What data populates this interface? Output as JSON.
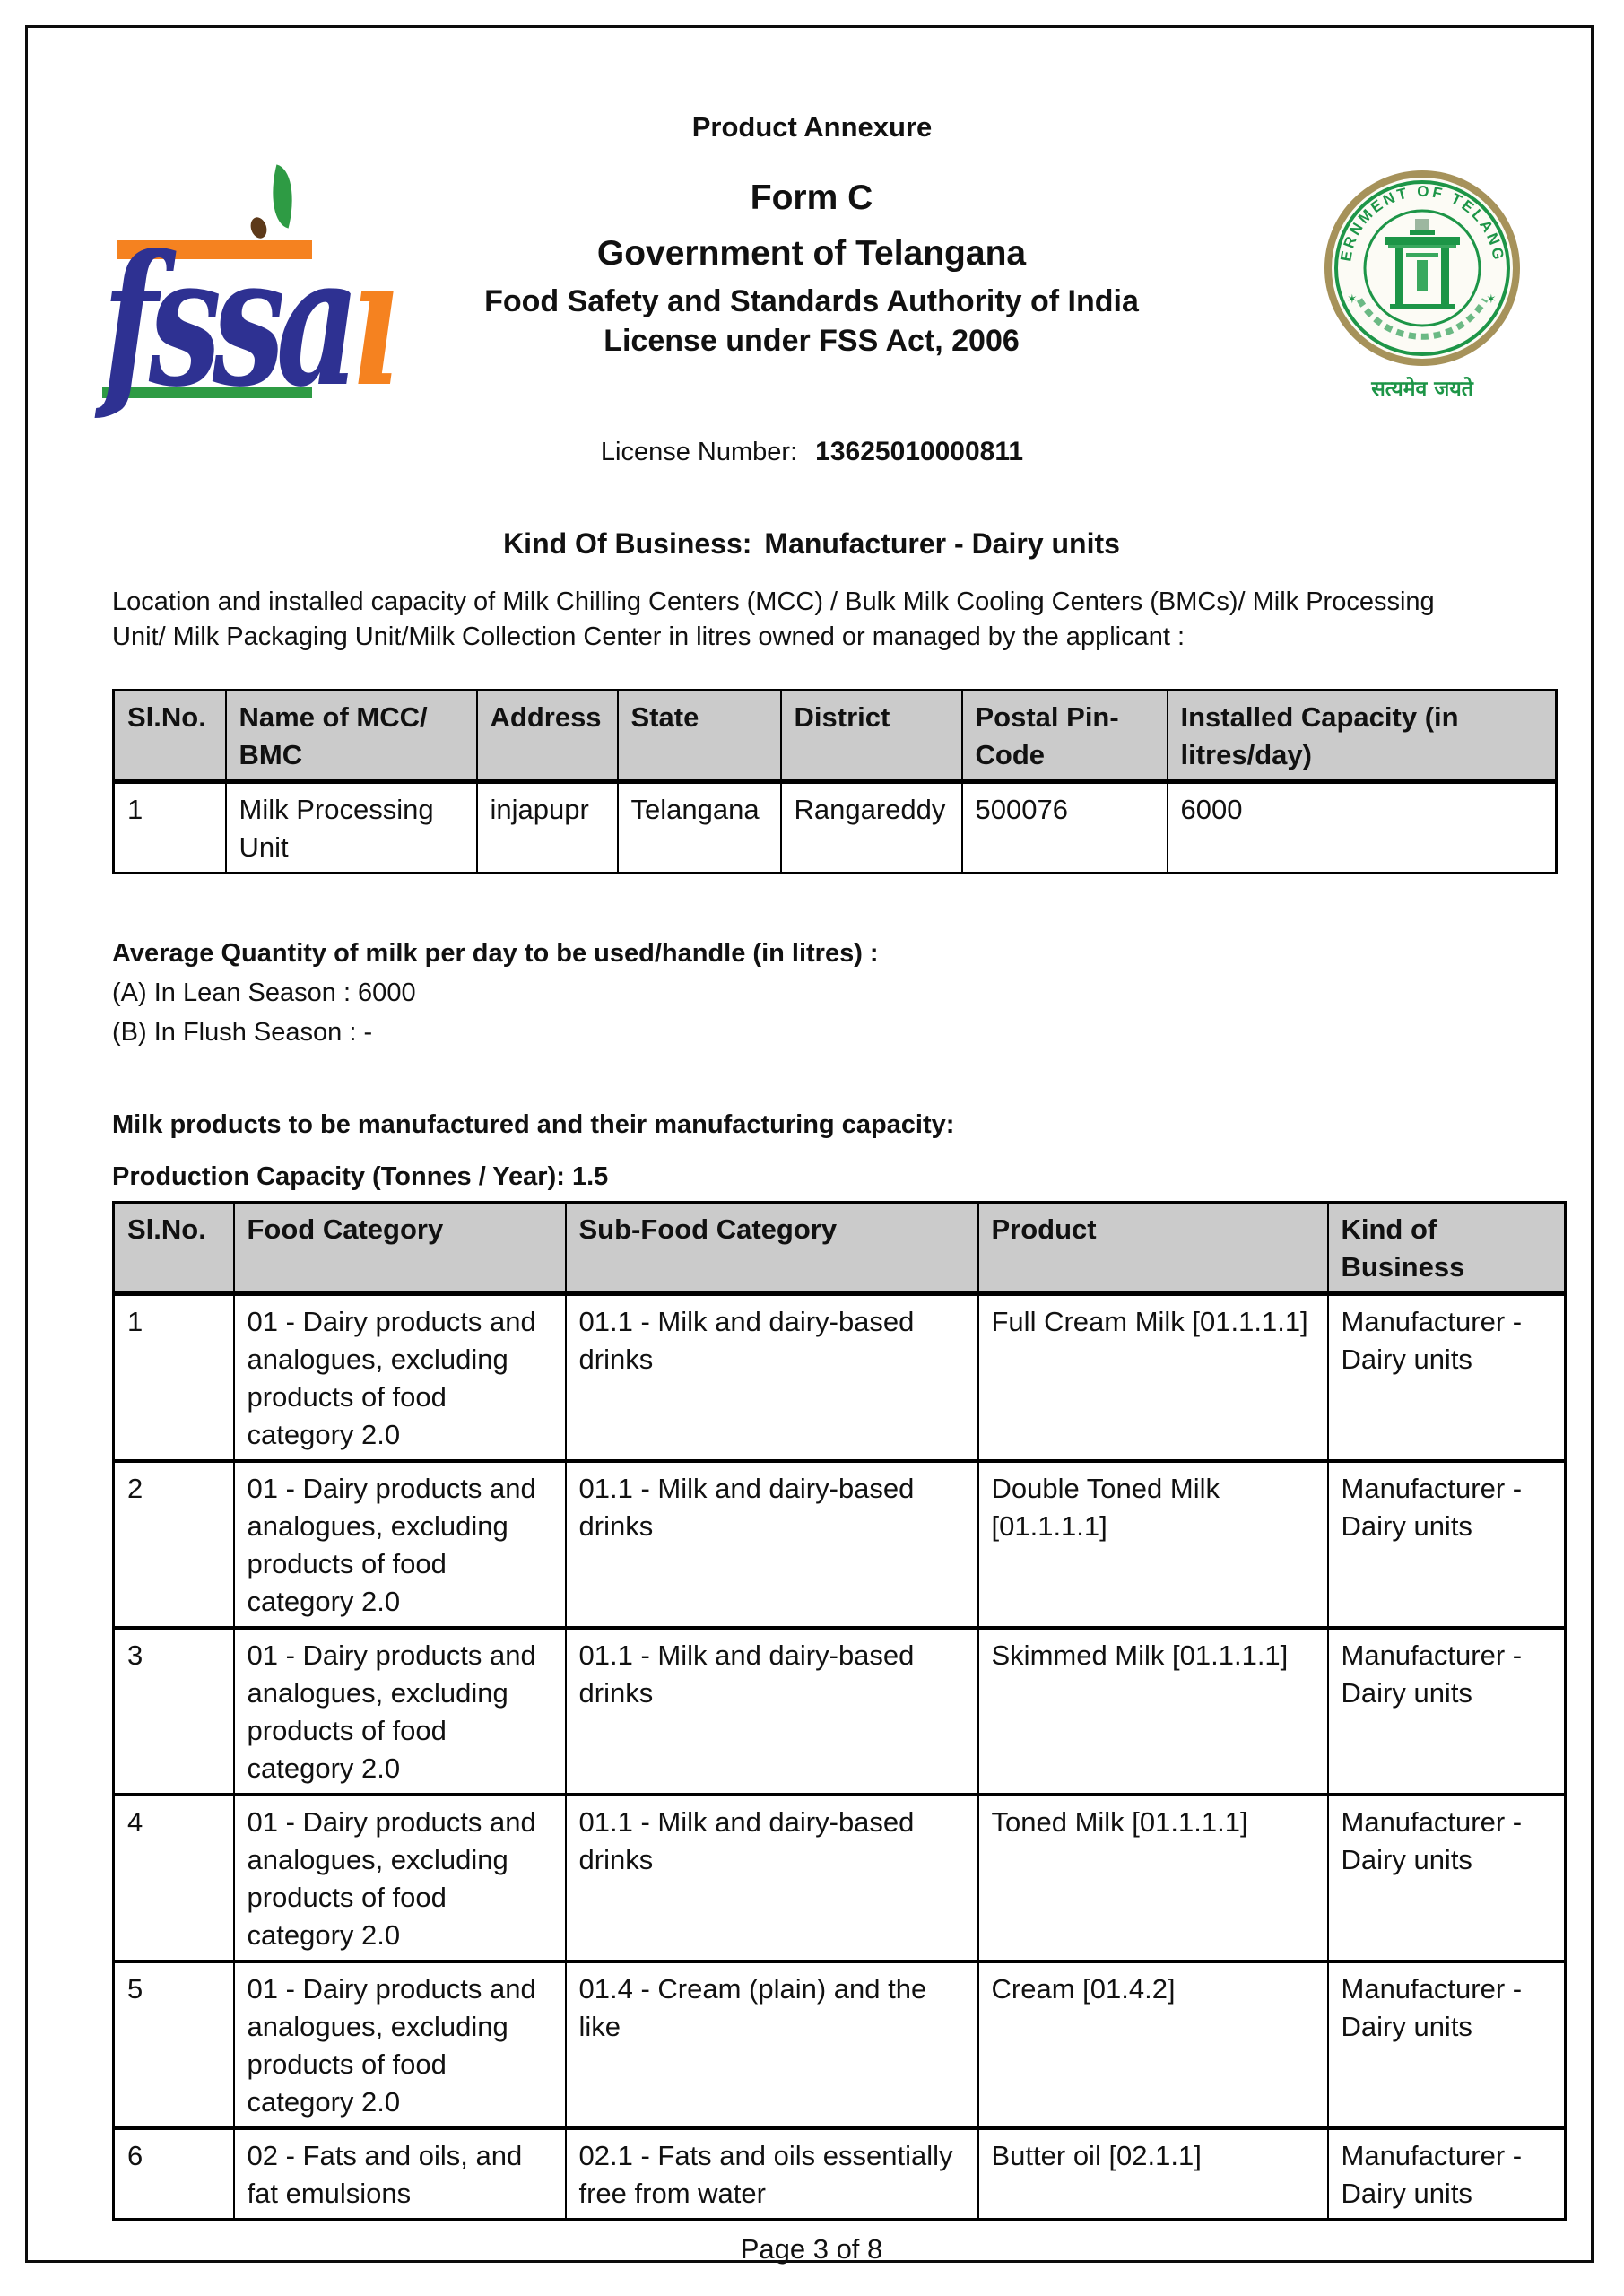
{
  "page": {
    "annexure_title": "Product Annexure",
    "form_title": "Form C",
    "government": "Government of Telangana",
    "authority": "Food Safety and Standards Authority of India",
    "act_line": "License under FSS Act, 2006",
    "license_number_label": "License Number:",
    "license_number": "13625010000811",
    "kind_of_business_label": "Kind Of Business:",
    "kind_of_business_value": "Manufacturer - Dairy units",
    "location_paragraph": "Location and installed capacity of Milk Chilling Centers (MCC) / Bulk Milk Cooling Centers (BMCs)/ Milk Processing Unit/ Milk Packaging Unit/Milk Collection Center in litres owned or managed by the applicant :",
    "footer": "Page 3 of 8"
  },
  "logos": {
    "fssai_text": "fssa",
    "fssai_i": "ı",
    "seal_ring_text": "GOVERNMENT OF TELANGANA",
    "seal_star": "✶",
    "seal_motto": "सत्यमेव जयते"
  },
  "avg_quantity": {
    "heading": "Average Quantity of milk per day to be used/handle (in litres) :",
    "lean_line": "(A) In Lean Season : 6000",
    "flush_line": "(B) In Flush Season : -"
  },
  "milk_products": {
    "heading": "Milk products to be manufactured and their manufacturing capacity:",
    "capacity_line": "Production Capacity (Tonnes / Year): 1.5"
  },
  "mcc_table": {
    "headers": [
      "Sl.No.",
      "Name of MCC/ BMC",
      "Address",
      "State",
      "District",
      "Postal Pin-Code",
      "Installed Capacity (in litres/day)"
    ],
    "rows": [
      [
        "1",
        "Milk Processing Unit",
        "injapupr",
        "Telangana",
        "Rangareddy",
        "500076",
        "6000"
      ]
    ]
  },
  "products_table": {
    "headers": [
      "Sl.No.",
      "Food Category",
      "Sub-Food Category",
      "Product",
      "Kind of Business"
    ],
    "rows": [
      [
        "1",
        "01 - Dairy products and analogues, excluding products of food category 2.0",
        "01.1 - Milk and dairy-based drinks",
        "Full Cream Milk [01.1.1.1]",
        "Manufacturer - Dairy units"
      ],
      [
        "2",
        "01 - Dairy products and analogues, excluding products of food category 2.0",
        "01.1 - Milk and dairy-based drinks",
        "Double Toned Milk [01.1.1.1]",
        "Manufacturer - Dairy units"
      ],
      [
        "3",
        "01 - Dairy products and analogues, excluding products of food category 2.0",
        "01.1 - Milk and dairy-based drinks",
        "Skimmed Milk [01.1.1.1]",
        "Manufacturer - Dairy units"
      ],
      [
        "4",
        "01 - Dairy products and analogues, excluding products of food category 2.0",
        "01.1 - Milk and dairy-based drinks",
        "Toned Milk [01.1.1.1]",
        "Manufacturer - Dairy units"
      ],
      [
        "5",
        "01 - Dairy products and analogues, excluding products of food category 2.0",
        "01.4 - Cream (plain) and the like",
        "Cream [01.4.2]",
        "Manufacturer - Dairy units"
      ],
      [
        "6",
        "02 - Fats and oils, and fat emulsions",
        "02.1 - Fats and oils essentially free from water",
        "Butter oil [02.1.1]",
        "Manufacturer - Dairy units"
      ]
    ]
  },
  "colors": {
    "fssai_blue": "#2e3192",
    "fssai_orange": "#f58220",
    "fssai_green": "#2e9b44",
    "seal_green": "#1d9547",
    "seal_ring_tan": "#a6925a",
    "table_header_bg": "#cbcbcb",
    "border_black": "#0c0c0c"
  }
}
